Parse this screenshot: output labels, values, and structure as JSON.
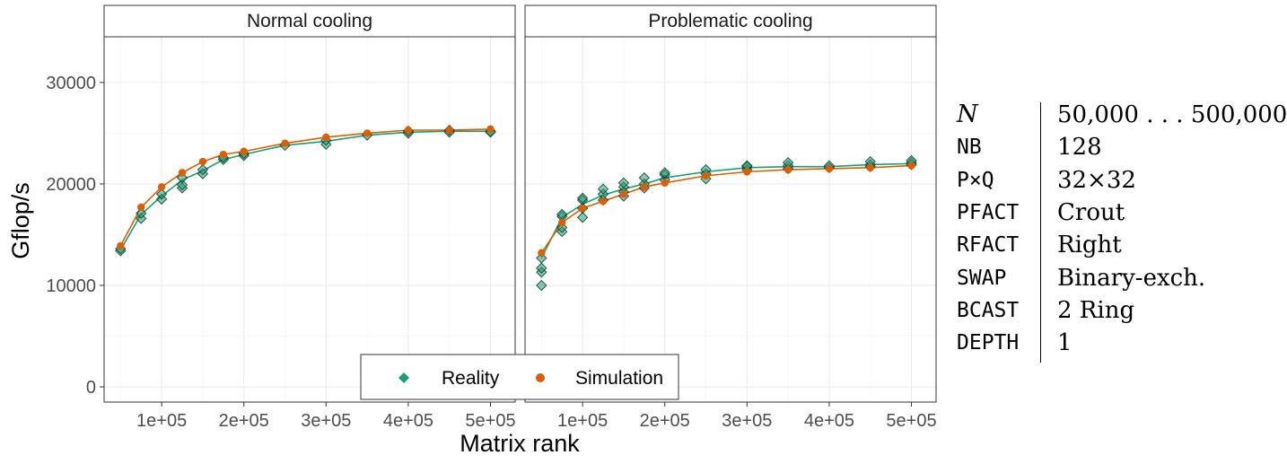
{
  "chart_data": {
    "type": "scatter",
    "xlabel": "Matrix rank",
    "ylabel": "Gflop/s",
    "xlim": [
      30000,
      530000
    ],
    "ylim": [
      -1500,
      34500
    ],
    "x_ticks": [
      100000,
      200000,
      300000,
      400000,
      500000
    ],
    "x_tick_labels": [
      "1e+05",
      "2e+05",
      "3e+05",
      "4e+05",
      "5e+05"
    ],
    "y_ticks": [
      0,
      10000,
      20000,
      30000
    ],
    "y_tick_labels": [
      "0",
      "10000",
      "20000",
      "30000"
    ],
    "grid": true,
    "legend": {
      "position": "bottom-center",
      "entries": [
        {
          "name": "Reality",
          "color": "#1b9e77",
          "shape": "diamond"
        },
        {
          "name": "Simulation",
          "color": "#d95f02",
          "shape": "circle"
        }
      ]
    },
    "facets": [
      {
        "title": "Normal cooling",
        "reality_points": [
          [
            50000,
            13400
          ],
          [
            50000,
            13600
          ],
          [
            75000,
            16600
          ],
          [
            75000,
            17100
          ],
          [
            100000,
            18500
          ],
          [
            100000,
            19000
          ],
          [
            125000,
            19600
          ],
          [
            125000,
            19900
          ],
          [
            125000,
            20600
          ],
          [
            150000,
            21000
          ],
          [
            150000,
            21400
          ],
          [
            175000,
            22400
          ],
          [
            175000,
            22600
          ],
          [
            200000,
            22800
          ],
          [
            200000,
            23000
          ],
          [
            250000,
            23800
          ],
          [
            300000,
            23900
          ],
          [
            300000,
            24300
          ],
          [
            350000,
            24800
          ],
          [
            400000,
            25000
          ],
          [
            400000,
            25200
          ],
          [
            450000,
            25100
          ],
          [
            450000,
            25300
          ],
          [
            500000,
            25200
          ],
          [
            500000,
            25100
          ]
        ],
        "reality_line": [
          [
            50000,
            13500
          ],
          [
            75000,
            17000
          ],
          [
            100000,
            18800
          ],
          [
            125000,
            20400
          ],
          [
            150000,
            21300
          ],
          [
            175000,
            22400
          ],
          [
            200000,
            22900
          ],
          [
            250000,
            23800
          ],
          [
            300000,
            24200
          ],
          [
            350000,
            24800
          ],
          [
            400000,
            25100
          ],
          [
            450000,
            25200
          ],
          [
            500000,
            25200
          ]
        ],
        "simulation": [
          [
            50000,
            13900
          ],
          [
            75000,
            17700
          ],
          [
            100000,
            19700
          ],
          [
            125000,
            21100
          ],
          [
            150000,
            22200
          ],
          [
            175000,
            22900
          ],
          [
            200000,
            23200
          ],
          [
            250000,
            24000
          ],
          [
            300000,
            24600
          ],
          [
            350000,
            25000
          ],
          [
            400000,
            25300
          ],
          [
            450000,
            25300
          ],
          [
            500000,
            25400
          ]
        ]
      },
      {
        "title": "Problematic cooling",
        "reality_points": [
          [
            50000,
            10000
          ],
          [
            50000,
            11300
          ],
          [
            50000,
            11700
          ],
          [
            50000,
            12700
          ],
          [
            75000,
            15300
          ],
          [
            75000,
            15700
          ],
          [
            75000,
            16800
          ],
          [
            75000,
            17000
          ],
          [
            100000,
            16700
          ],
          [
            100000,
            17600
          ],
          [
            100000,
            18400
          ],
          [
            100000,
            18600
          ],
          [
            125000,
            18400
          ],
          [
            125000,
            19000
          ],
          [
            125000,
            19500
          ],
          [
            150000,
            18800
          ],
          [
            150000,
            19200
          ],
          [
            150000,
            19700
          ],
          [
            150000,
            20100
          ],
          [
            175000,
            19600
          ],
          [
            175000,
            20000
          ],
          [
            175000,
            20600
          ],
          [
            200000,
            20400
          ],
          [
            200000,
            20900
          ],
          [
            200000,
            21100
          ],
          [
            250000,
            20500
          ],
          [
            250000,
            21000
          ],
          [
            250000,
            21400
          ],
          [
            300000,
            21400
          ],
          [
            300000,
            21700
          ],
          [
            300000,
            21800
          ],
          [
            350000,
            21500
          ],
          [
            350000,
            21800
          ],
          [
            350000,
            22100
          ],
          [
            400000,
            21600
          ],
          [
            400000,
            21800
          ],
          [
            450000,
            21700
          ],
          [
            450000,
            21900
          ],
          [
            450000,
            22200
          ],
          [
            500000,
            21900
          ],
          [
            500000,
            22100
          ],
          [
            500000,
            22300
          ]
        ],
        "reality_line": [
          [
            50000,
            12700
          ],
          [
            75000,
            16700
          ],
          [
            100000,
            18000
          ],
          [
            125000,
            18900
          ],
          [
            150000,
            19500
          ],
          [
            175000,
            20000
          ],
          [
            200000,
            20600
          ],
          [
            250000,
            21200
          ],
          [
            300000,
            21600
          ],
          [
            350000,
            21700
          ],
          [
            400000,
            21700
          ],
          [
            450000,
            21900
          ],
          [
            500000,
            22000
          ]
        ],
        "simulation": [
          [
            50000,
            13200
          ],
          [
            75000,
            16200
          ],
          [
            100000,
            17600
          ],
          [
            125000,
            18300
          ],
          [
            150000,
            19000
          ],
          [
            175000,
            19700
          ],
          [
            200000,
            20100
          ],
          [
            250000,
            20800
          ],
          [
            300000,
            21200
          ],
          [
            350000,
            21400
          ],
          [
            400000,
            21500
          ],
          [
            450000,
            21600
          ],
          [
            500000,
            21800
          ]
        ]
      }
    ]
  },
  "params": [
    {
      "key": "N",
      "value": "50,000 . . . 500,000",
      "math": true
    },
    {
      "key": "NB",
      "value": "128"
    },
    {
      "key": "P×Q",
      "value": "32×32"
    },
    {
      "key": "PFACT",
      "value": "Crout"
    },
    {
      "key": "RFACT",
      "value": "Right"
    },
    {
      "key": "SWAP",
      "value": "Binary-exch."
    },
    {
      "key": "BCAST",
      "value": "2 Ring"
    },
    {
      "key": "DEPTH",
      "value": "1"
    }
  ]
}
